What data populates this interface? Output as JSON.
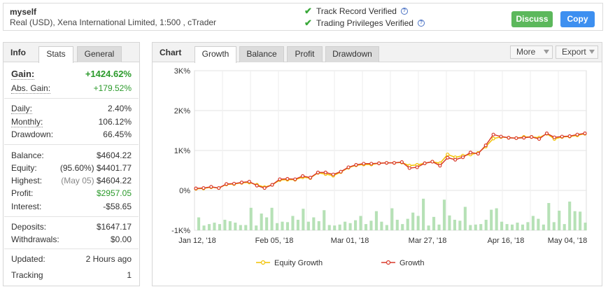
{
  "header": {
    "title": "myself",
    "subtitle": "Real (USD), Xena International Limited, 1:500 , cTrader",
    "verified": [
      "Track Record Verified",
      "Trading Privileges Verified"
    ],
    "discuss_label": "Discuss",
    "copy_label": "Copy",
    "colors": {
      "check": "#3aa83a",
      "discuss": "#5cb85c",
      "copy": "#3d8ff0"
    }
  },
  "left_panel": {
    "tabs": {
      "info": "Info",
      "stats": "Stats",
      "general": "General"
    },
    "gain": {
      "label": "Gain:",
      "value": "+1424.62%"
    },
    "abs_gain": {
      "label": "Abs. Gain:",
      "value": "+179.52%"
    },
    "daily": {
      "label": "Daily:",
      "value": "2.40%"
    },
    "monthly": {
      "label": "Monthly:",
      "value": "106.12%"
    },
    "drawdown": {
      "label": "Drawdown:",
      "value": "66.45%"
    },
    "balance": {
      "label": "Balance:",
      "value": "$4604.22"
    },
    "equity": {
      "label": "Equity:",
      "note": "(95.60%)",
      "value": "$4401.77"
    },
    "highest": {
      "label": "Highest:",
      "note": "(May 05)",
      "value": "$4604.22"
    },
    "profit": {
      "label": "Profit:",
      "value": "$2957.05"
    },
    "interest": {
      "label": "Interest:",
      "value": "-$58.65"
    },
    "deposits": {
      "label": "Deposits:",
      "value": "$1647.17"
    },
    "withdrawals": {
      "label": "Withdrawals:",
      "value": "$0.00"
    },
    "updated": {
      "label": "Updated:",
      "value": "2 Hours ago"
    },
    "tracking": {
      "label": "Tracking",
      "value": "1"
    }
  },
  "chart_panel": {
    "label": "Chart",
    "tabs": [
      "Growth",
      "Balance",
      "Profit",
      "Drawdown"
    ],
    "active_tab": "Growth",
    "more_label": "More",
    "export_label": "Export"
  },
  "chart_data": {
    "type": "line",
    "x_ticks": [
      "Jan 12, '18",
      "Feb 05, '18",
      "Mar 01, '18",
      "Mar 27, '18",
      "Apr 16, '18",
      "May 04, '18"
    ],
    "y_ticks": [
      "3K%",
      "2K%",
      "1K%",
      "0%",
      "-1K%"
    ],
    "ylim": [
      -1000,
      3000
    ],
    "grid": true,
    "legend": "bottom",
    "series": [
      {
        "name": "Equity Growth",
        "color": "#f2c200",
        "values": [
          40,
          50,
          80,
          60,
          150,
          160,
          190,
          200,
          140,
          80,
          140,
          260,
          270,
          270,
          330,
          310,
          440,
          410,
          370,
          460,
          570,
          630,
          650,
          650,
          680,
          690,
          690,
          700,
          620,
          640,
          680,
          720,
          680,
          900,
          830,
          870,
          900,
          940,
          1100,
          1300,
          1340,
          1320,
          1310,
          1340,
          1340,
          1320,
          1420,
          1290,
          1340,
          1350,
          1380,
          1420
        ]
      },
      {
        "name": "Growth",
        "color": "#d93a2b",
        "values": [
          50,
          60,
          90,
          60,
          160,
          170,
          200,
          220,
          120,
          60,
          140,
          280,
          290,
          280,
          360,
          320,
          450,
          450,
          400,
          470,
          580,
          640,
          670,
          670,
          680,
          690,
          690,
          710,
          560,
          580,
          680,
          720,
          620,
          820,
          770,
          830,
          950,
          920,
          1130,
          1400,
          1350,
          1320,
          1310,
          1320,
          1340,
          1290,
          1430,
          1330,
          1350,
          1360,
          1400,
          1430
        ]
      },
      {
        "name": "Bars",
        "color": "#a9dca9",
        "values": [
          270,
          100,
          130,
          160,
          130,
          220,
          190,
          160,
          110,
          110,
          470,
          100,
          350,
          270,
          470,
          150,
          180,
          170,
          300,
          220,
          450,
          180,
          270,
          190,
          420,
          110,
          100,
          120,
          180,
          150,
          210,
          300,
          130,
          200,
          400,
          180,
          110,
          460,
          220,
          130,
          240,
          370,
          300,
          660,
          100,
          280,
          120,
          640,
          310,
          220,
          200,
          490,
          110,
          120,
          130,
          220,
          430,
          460,
          180,
          130,
          120,
          160,
          120,
          170,
          300,
          240,
          120,
          570,
          170,
          410,
          130,
          600,
          400,
          390,
          160
        ]
      }
    ]
  }
}
